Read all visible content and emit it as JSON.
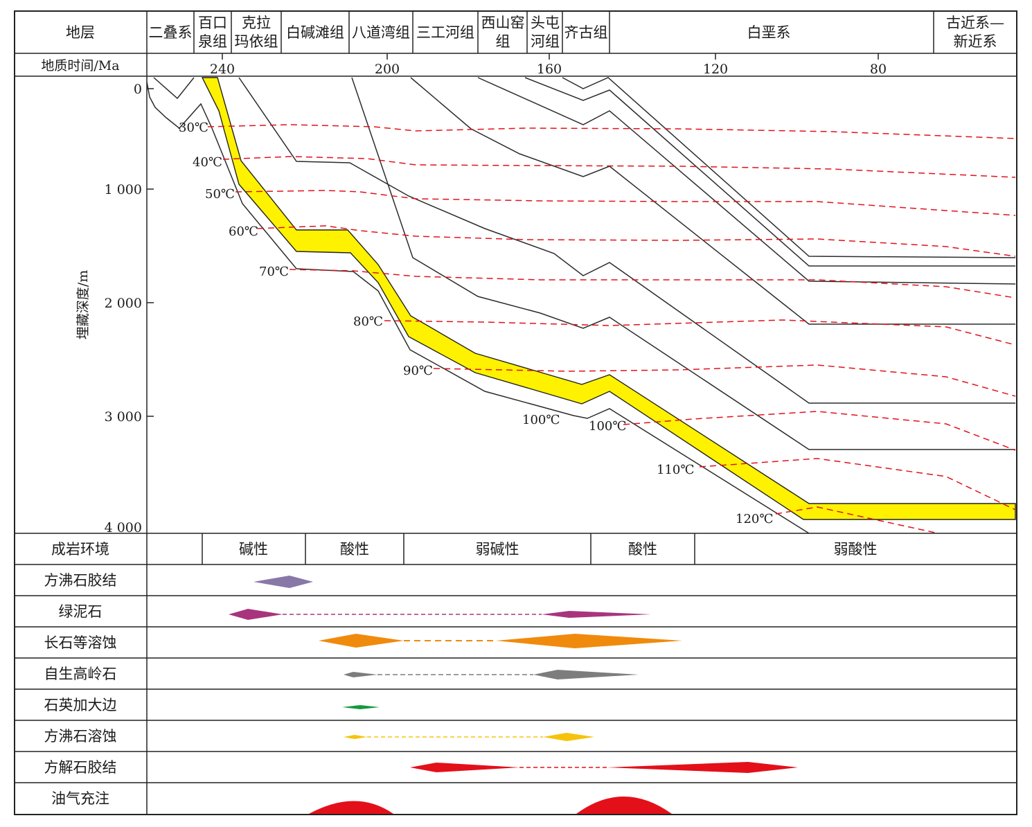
{
  "header": {
    "strata_label": "地层",
    "time_label": "地质时间/Ma",
    "strata": [
      {
        "lines": [
          "二叠系"
        ]
      },
      {
        "lines": [
          "百口",
          "泉组"
        ]
      },
      {
        "lines": [
          "克拉",
          "玛依组"
        ]
      },
      {
        "lines": [
          "白碱滩组"
        ]
      },
      {
        "lines": [
          "八道湾组"
        ]
      },
      {
        "lines": [
          "三工河组"
        ]
      },
      {
        "lines": [
          "西山窑",
          "组"
        ]
      },
      {
        "lines": [
          "头屯",
          "河组"
        ]
      },
      {
        "lines": [
          "齐古组"
        ]
      },
      {
        "lines": [
          "白垩系"
        ]
      },
      {
        "lines": [
          "古近系—",
          "新近系"
        ]
      }
    ],
    "time_ticks": [
      "240",
      "200",
      "160",
      "120",
      "80"
    ]
  },
  "depth_axis": {
    "title": "埋藏深度/m",
    "ticks": [
      "0",
      "1 000",
      "2 000",
      "3 000",
      "4 000"
    ]
  },
  "isotherms": [
    "30℃",
    "40℃",
    "50℃",
    "60℃",
    "70℃",
    "80℃",
    "90℃",
    "100℃",
    "100℃",
    "110℃",
    "120℃"
  ],
  "environment": {
    "label": "成岩环境",
    "phases": [
      "碱性",
      "酸性",
      "弱碱性",
      "酸性",
      "弱酸性"
    ]
  },
  "events": [
    {
      "label": "方沸石胶结",
      "color": "#8878a8"
    },
    {
      "label": "绿泥石",
      "color": "#a8347e"
    },
    {
      "label": "长石等溶蚀",
      "color": "#f08a0c"
    },
    {
      "label": "自生高岭石",
      "color": "#7d7d7d"
    },
    {
      "label": "石英加大边",
      "color": "#129a3a"
    },
    {
      "label": "方沸石溶蚀",
      "color": "#f5c30c"
    },
    {
      "label": "方解石胶结",
      "color": "#e3101a"
    },
    {
      "label": "油气充注",
      "color": "#e3101a"
    }
  ],
  "colors": {
    "target_layer": "#fff200",
    "isotherm": "#e3101a",
    "burial_line": "#2b2b2b"
  }
}
